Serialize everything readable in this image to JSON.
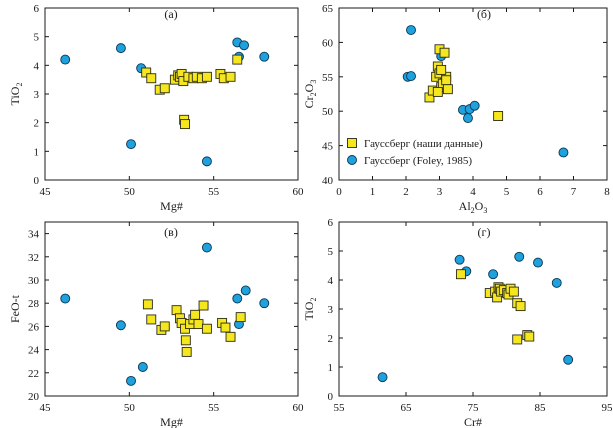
{
  "colors": {
    "yellow_fill": "#f5e61e",
    "yellow_stroke": "#2b2b1a",
    "blue_fill": "#1ea1dc",
    "blue_stroke": "#0b3553",
    "axis": "#1a1a1a"
  },
  "legend": {
    "entries": [
      {
        "label": "Гауссберг (наши данные)",
        "marker": "square"
      },
      {
        "label": "Гауссберг (Foley, 1985)",
        "marker": "circle"
      }
    ]
  },
  "chart_data": [
    {
      "id": "a",
      "type": "scatter",
      "panel_label": "(а)",
      "xlabel": "Mg#",
      "ylabel": "TiO",
      "ylabel_sub": "2",
      "xlim": [
        45,
        60
      ],
      "ylim": [
        0,
        6
      ],
      "xticks": [
        45,
        50,
        55,
        60
      ],
      "yticks": [
        0,
        1,
        2,
        3,
        4,
        5,
        6
      ],
      "series": [
        {
          "marker": "square",
          "points": [
            [
              51.0,
              3.75
            ],
            [
              51.3,
              3.55
            ],
            [
              51.8,
              3.15
            ],
            [
              52.1,
              3.2
            ],
            [
              52.7,
              3.5
            ],
            [
              52.9,
              3.65
            ],
            [
              53.0,
              3.6
            ],
            [
              53.1,
              3.7
            ],
            [
              53.2,
              3.45
            ],
            [
              53.25,
              2.1
            ],
            [
              53.3,
              1.95
            ],
            [
              53.5,
              3.6
            ],
            [
              53.8,
              3.55
            ],
            [
              54.0,
              3.6
            ],
            [
              54.3,
              3.55
            ],
            [
              54.6,
              3.6
            ],
            [
              55.4,
              3.7
            ],
            [
              55.6,
              3.55
            ],
            [
              56.0,
              3.6
            ],
            [
              56.4,
              4.2
            ]
          ]
        },
        {
          "marker": "circle",
          "points": [
            [
              46.2,
              4.2
            ],
            [
              49.5,
              4.6
            ],
            [
              50.1,
              1.25
            ],
            [
              50.7,
              3.9
            ],
            [
              54.6,
              0.65
            ],
            [
              56.4,
              4.8
            ],
            [
              56.5,
              4.3
            ],
            [
              56.8,
              4.7
            ],
            [
              58.0,
              4.3
            ]
          ]
        }
      ]
    },
    {
      "id": "b",
      "type": "scatter",
      "panel_label": "(б)",
      "xlabel": "Al",
      "xlabel_sub1": "2",
      "xlabel_mid": "O",
      "xlabel_sub2": "3",
      "ylabel": "Cr",
      "ylabel_sub1": "2",
      "ylabel_mid": "O",
      "ylabel_sub2": "3",
      "xlim": [
        0,
        8
      ],
      "ylim": [
        40,
        65
      ],
      "xticks": [
        0,
        1,
        2,
        3,
        4,
        5,
        6,
        7,
        8
      ],
      "yticks": [
        40,
        45,
        50,
        55,
        60,
        65
      ],
      "series": [
        {
          "marker": "square",
          "points": [
            [
              2.7,
              52.0
            ],
            [
              2.8,
              53.0
            ],
            [
              2.9,
              55.0
            ],
            [
              2.95,
              56.5
            ],
            [
              3.0,
              55.5
            ],
            [
              3.0,
              59.0
            ],
            [
              3.05,
              53.5
            ],
            [
              3.1,
              54.0
            ],
            [
              3.15,
              58.5
            ],
            [
              3.2,
              55.0
            ],
            [
              3.2,
              54.5
            ],
            [
              3.25,
              53.2
            ],
            [
              2.95,
              52.8
            ],
            [
              3.05,
              56.0
            ],
            [
              4.75,
              49.3
            ]
          ]
        },
        {
          "marker": "circle",
          "points": [
            [
              2.05,
              55.0
            ],
            [
              2.15,
              55.1
            ],
            [
              2.15,
              61.8
            ],
            [
              3.7,
              50.2
            ],
            [
              3.85,
              49.0
            ],
            [
              3.9,
              50.3
            ],
            [
              4.05,
              50.8
            ],
            [
              3.05,
              58.0
            ],
            [
              6.7,
              44.0
            ]
          ]
        }
      ]
    },
    {
      "id": "c",
      "type": "scatter",
      "panel_label": "(в)",
      "xlabel": "Mg#",
      "ylabel": "FeO-t",
      "xlim": [
        45,
        60
      ],
      "ylim": [
        20,
        35
      ],
      "xticks": [
        45,
        50,
        55,
        60
      ],
      "yticks": [
        20,
        22,
        24,
        26,
        28,
        30,
        32,
        34
      ],
      "series": [
        {
          "marker": "square",
          "points": [
            [
              51.1,
              27.9
            ],
            [
              51.3,
              26.6
            ],
            [
              51.9,
              25.7
            ],
            [
              52.1,
              26.0
            ],
            [
              52.8,
              27.4
            ],
            [
              53.0,
              26.7
            ],
            [
              53.1,
              26.3
            ],
            [
              53.3,
              25.8
            ],
            [
              53.35,
              24.8
            ],
            [
              53.4,
              23.8
            ],
            [
              53.6,
              26.2
            ],
            [
              53.8,
              26.6
            ],
            [
              53.9,
              27.0
            ],
            [
              54.1,
              26.2
            ],
            [
              54.4,
              27.8
            ],
            [
              54.6,
              25.8
            ],
            [
              55.5,
              26.3
            ],
            [
              55.7,
              25.9
            ],
            [
              56.0,
              25.1
            ],
            [
              56.6,
              26.8
            ]
          ]
        },
        {
          "marker": "circle",
          "points": [
            [
              46.2,
              28.4
            ],
            [
              49.5,
              26.1
            ],
            [
              50.1,
              21.3
            ],
            [
              50.8,
              22.5
            ],
            [
              54.6,
              32.8
            ],
            [
              56.4,
              28.4
            ],
            [
              56.5,
              26.2
            ],
            [
              56.9,
              29.1
            ],
            [
              58.0,
              28.0
            ]
          ]
        }
      ]
    },
    {
      "id": "d",
      "type": "scatter",
      "panel_label": "(г)",
      "xlabel": "Cr#",
      "ylabel": "TiO",
      "ylabel_sub": "2",
      "xlim": [
        55,
        95
      ],
      "ylim": [
        0,
        6
      ],
      "xticks": [
        55,
        65,
        75,
        85,
        95
      ],
      "yticks": [
        0,
        1,
        2,
        3,
        4,
        5,
        6
      ],
      "series": [
        {
          "marker": "square",
          "points": [
            [
              73.2,
              4.2
            ],
            [
              77.5,
              3.55
            ],
            [
              78.3,
              3.6
            ],
            [
              78.6,
              3.4
            ],
            [
              78.8,
              3.75
            ],
            [
              79.0,
              3.7
            ],
            [
              79.2,
              3.6
            ],
            [
              79.6,
              3.65
            ],
            [
              80.1,
              3.55
            ],
            [
              80.3,
              3.5
            ],
            [
              80.6,
              3.7
            ],
            [
              81.1,
              3.6
            ],
            [
              81.6,
              3.2
            ],
            [
              82.1,
              3.1
            ],
            [
              81.6,
              1.95
            ],
            [
              83.1,
              2.1
            ],
            [
              83.4,
              2.05
            ]
          ]
        },
        {
          "marker": "circle",
          "points": [
            [
              61.5,
              0.65
            ],
            [
              73.0,
              4.7
            ],
            [
              74.0,
              4.3
            ],
            [
              78.0,
              4.2
            ],
            [
              81.9,
              4.8
            ],
            [
              84.7,
              4.6
            ],
            [
              87.5,
              3.9
            ],
            [
              89.2,
              1.25
            ]
          ]
        }
      ]
    }
  ]
}
